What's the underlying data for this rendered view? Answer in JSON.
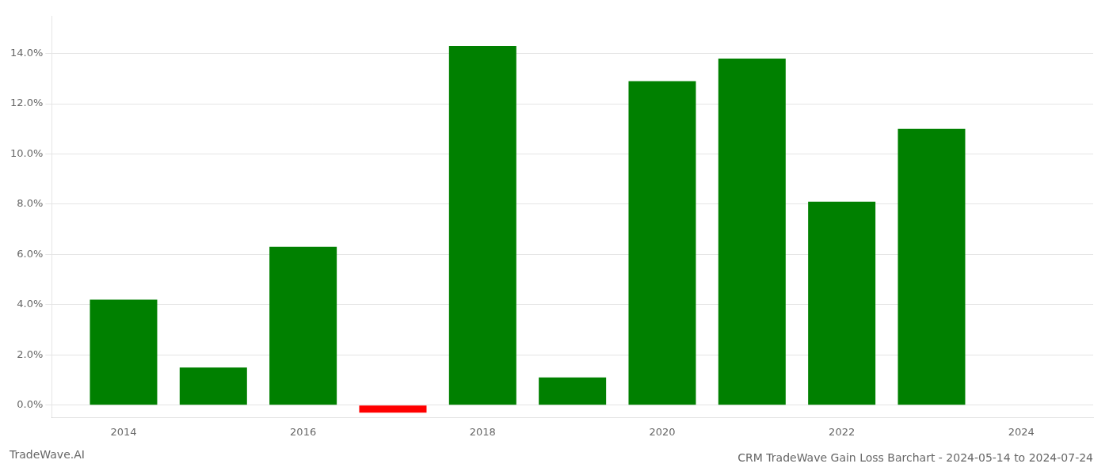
{
  "chart_data": {
    "type": "bar",
    "title": "CRM TradeWave Gain Loss Barchart - 2024-05-14 to 2024-07-24",
    "annotations": [
      "TradeWave.AI"
    ],
    "x": [
      2014,
      2015,
      2016,
      2017,
      2018,
      2019,
      2020,
      2021,
      2022,
      2023
    ],
    "values": [
      0.042,
      0.015,
      0.063,
      -0.003,
      0.143,
      0.011,
      0.129,
      0.138,
      0.081,
      0.11
    ],
    "colors": [
      "#008000",
      "#008000",
      "#008000",
      "#ff0000",
      "#008000",
      "#008000",
      "#008000",
      "#008000",
      "#008000",
      "#008000"
    ],
    "xlim": [
      2013.2,
      2024.8
    ],
    "xticks": [
      2014,
      2016,
      2018,
      2020,
      2022,
      2024
    ],
    "ylim": [
      -0.005,
      0.155
    ],
    "yticks": [
      {
        "value": 0.0,
        "label": "0.0%"
      },
      {
        "value": 0.02,
        "label": "2.0%"
      },
      {
        "value": 0.04,
        "label": "4.0%"
      },
      {
        "value": 0.06,
        "label": "6.0%"
      },
      {
        "value": 0.08,
        "label": "8.0%"
      },
      {
        "value": 0.1,
        "label": "10.0%"
      },
      {
        "value": 0.12,
        "label": "12.0%"
      },
      {
        "value": 0.14,
        "label": "14.0%"
      }
    ],
    "grid": "y"
  }
}
